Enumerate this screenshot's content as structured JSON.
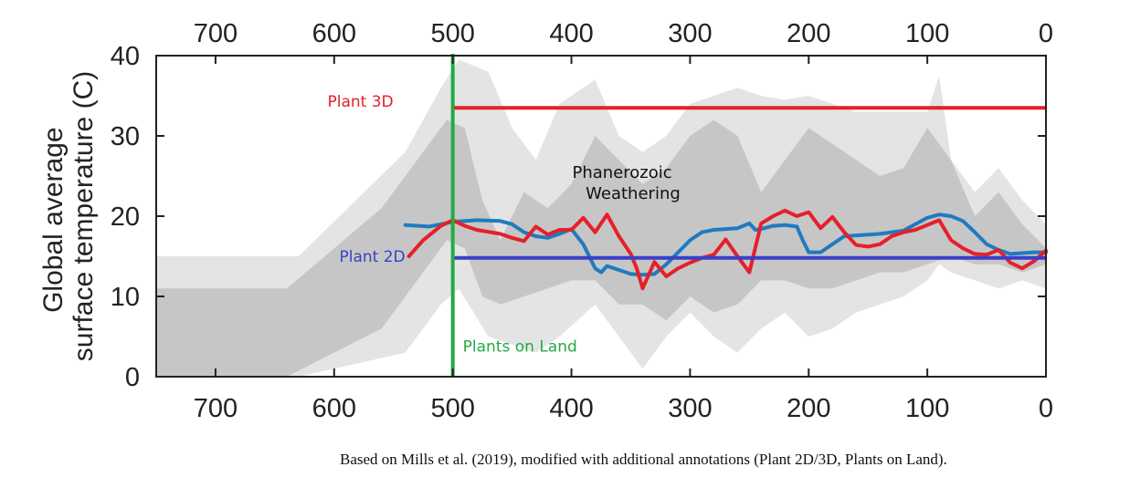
{
  "chart_data": {
    "type": "line",
    "title": "",
    "xlabel": "",
    "ylabel_lines": [
      "Global average",
      "surface temperature (C)"
    ],
    "x_reversed": true,
    "xlim": [
      750,
      0
    ],
    "ylim": [
      0,
      40
    ],
    "x_ticks": [
      700,
      600,
      500,
      400,
      300,
      200,
      100,
      0
    ],
    "x_tick_labels": [
      "700",
      "600",
      "500",
      "400",
      "300",
      "200",
      "100",
      "0"
    ],
    "y_ticks": [
      0,
      10,
      20,
      30,
      40
    ],
    "y_tick_labels": [
      "0",
      "10",
      "20",
      "30",
      "40"
    ],
    "grid": false,
    "bands": {
      "light": {
        "color": "#e4e4e4",
        "x": [
          750,
          630,
          540,
          510,
          495,
          470,
          450,
          430,
          410,
          380,
          360,
          340,
          320,
          300,
          280,
          260,
          240,
          220,
          200,
          180,
          160,
          140,
          120,
          100,
          90,
          80,
          60,
          40,
          20,
          0
        ],
        "upper": [
          15,
          15,
          28,
          36,
          39.5,
          38,
          31,
          27,
          34,
          37,
          30,
          28,
          30,
          34,
          35,
          36,
          35,
          34.5,
          35,
          34,
          33,
          33,
          33,
          33,
          37.5,
          27,
          23,
          26,
          22,
          19
        ],
        "lower": [
          0,
          0,
          3,
          9,
          11,
          5,
          4,
          3,
          5,
          9,
          5,
          1,
          5,
          8,
          5,
          3,
          6,
          8,
          5,
          6,
          8,
          9,
          10,
          12,
          14,
          13,
          12,
          11,
          12,
          11
        ]
      },
      "dark": {
        "color": "#c6c6c6",
        "x": [
          750,
          640,
          560,
          530,
          505,
          490,
          475,
          460,
          440,
          420,
          400,
          380,
          360,
          340,
          320,
          300,
          280,
          260,
          240,
          220,
          200,
          180,
          160,
          140,
          120,
          100,
          80,
          60,
          40,
          20,
          0
        ],
        "upper": [
          11,
          11,
          21,
          27,
          32,
          31,
          22,
          17,
          23,
          21,
          24,
          30,
          27,
          24,
          26,
          30,
          32,
          30,
          23,
          27,
          31,
          29,
          27,
          25,
          26,
          31,
          27,
          20,
          23,
          19,
          16
        ],
        "lower": [
          0,
          0,
          6,
          12,
          17,
          16,
          10,
          9,
          10,
          11,
          12,
          12,
          9,
          9,
          7,
          10,
          8,
          9,
          12,
          12,
          11,
          11,
          12,
          13,
          13,
          14,
          15,
          14,
          14,
          13,
          14
        ]
      }
    },
    "series": [
      {
        "name": "",
        "color": "#1f7bc0",
        "x": [
          540,
          520,
          500,
          480,
          460,
          450,
          440,
          430,
          420,
          410,
          400,
          390,
          380,
          375,
          370,
          360,
          350,
          340,
          330,
          320,
          310,
          300,
          290,
          280,
          270,
          260,
          250,
          245,
          240,
          230,
          220,
          210,
          205,
          200,
          190,
          180,
          170,
          160,
          150,
          140,
          130,
          120,
          110,
          100,
          90,
          80,
          70,
          60,
          50,
          40,
          30,
          20,
          10,
          0
        ],
        "y": [
          18.9,
          18.7,
          19.3,
          19.5,
          19.4,
          19.0,
          18.0,
          17.5,
          17.3,
          17.8,
          18.4,
          16.5,
          13.5,
          13.0,
          13.8,
          13.3,
          12.8,
          12.7,
          12.8,
          14.0,
          15.5,
          17.0,
          18.0,
          18.3,
          18.4,
          18.5,
          19.1,
          18.3,
          18.4,
          18.8,
          18.9,
          18.7,
          17.0,
          15.5,
          15.5,
          16.5,
          17.5,
          17.6,
          17.7,
          17.8,
          18.0,
          18.2,
          19.0,
          19.8,
          20.2,
          20.0,
          19.4,
          18.0,
          16.5,
          15.8,
          15.3,
          15.4,
          15.5,
          15.5
        ]
      },
      {
        "name": "",
        "color": "#e5202a",
        "x": [
          537,
          525,
          510,
          500,
          490,
          480,
          460,
          450,
          440,
          430,
          420,
          410,
          400,
          390,
          380,
          370,
          360,
          350,
          345,
          340,
          330,
          320,
          310,
          300,
          290,
          280,
          270,
          260,
          250,
          240,
          230,
          220,
          210,
          200,
          190,
          180,
          170,
          160,
          150,
          140,
          130,
          120,
          110,
          100,
          90,
          80,
          70,
          60,
          50,
          40,
          30,
          20,
          10,
          0
        ],
        "y": [
          15.0,
          17.0,
          18.8,
          19.5,
          18.8,
          18.3,
          17.8,
          17.3,
          16.9,
          18.7,
          17.7,
          18.3,
          18.3,
          19.8,
          18.0,
          20.2,
          17.5,
          15.3,
          13.5,
          11.0,
          14.3,
          12.5,
          13.5,
          14.2,
          14.8,
          15.2,
          17.1,
          15.0,
          13.0,
          19.1,
          20.0,
          20.7,
          20.0,
          20.5,
          18.5,
          19.9,
          18.0,
          16.4,
          16.2,
          16.5,
          17.5,
          18.0,
          18.3,
          18.9,
          19.5,
          17.0,
          16.0,
          15.3,
          15.2,
          15.8,
          14.2,
          13.5,
          14.4,
          15.7
        ]
      }
    ],
    "hlines": [
      {
        "label": "Plant  3D",
        "y": 33.5,
        "x_from": 500,
        "x_to": 0,
        "color": "#e5202a"
      },
      {
        "label": "Plant  2D",
        "y": 14.8,
        "x_from": 500,
        "x_to": 0,
        "color": "#3a3fc9"
      }
    ],
    "vlines": [
      {
        "label": "Plants on Land",
        "x": 500,
        "y_from": 0,
        "y_to": 40,
        "color": "#22aa44"
      }
    ],
    "annotations": [
      {
        "text_lines": [
          "Phanerozoic",
          "Weathering"
        ],
        "x": 355,
        "y": 23.4
      }
    ]
  },
  "caption": "Based on Mills et al. (2019), modified with additional annotations (Plant 2D/3D, Plants on Land)."
}
